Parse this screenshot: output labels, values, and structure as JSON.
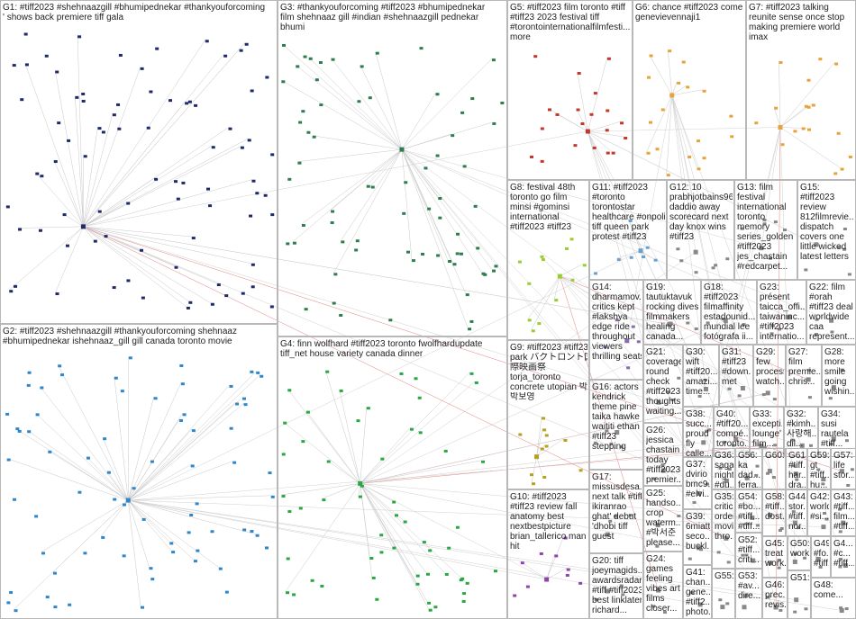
{
  "groups": [
    {
      "lines": [
        "G1: #tiff2023 #shehnaazgill #bhumipednekar #thankyouforcoming",
        "' shows back premiere tiff gala"
      ]
    },
    {
      "lines": [
        "G3: #thankyouforcoming #tiff2023 #bhumipednekar",
        "film shehnaaz gill #indian #shehnaazgill pednekar",
        "bhumi"
      ]
    },
    {
      "lines": [
        "G5: #tiff2023 film toronto #tiff",
        "#tiff23 2023 festival tiff",
        "#torontointernationalfilmfesti...",
        "more"
      ]
    },
    {
      "lines": [
        "G6: chance #tiff2023 come",
        "genevievennaji1"
      ]
    },
    {
      "lines": [
        "G7: #tiff2023 talking",
        "reunite sense once stop",
        "making premiere world",
        "imax"
      ]
    },
    {
      "lines": [
        "G2: #tiff2023 #shehnaazgill #thankyouforcoming shehnaaz",
        "#bhumipednekar ishehnaaz_gill gill canada toronto movie"
      ]
    },
    {
      "lines": [
        "G4: finn wolfhard #tiff2023 toronto fwolfhardupdate",
        "tiff_net house variety canada dinner"
      ]
    },
    {
      "lines": [
        "G8: festival 48th",
        "toronto go film",
        "minsi #gominsi",
        "international",
        "#tiff2023 #tiff23"
      ]
    },
    {
      "lines": [
        "G11: #tiff2023",
        "#toronto",
        "torontostar",
        "healthcare #onpoli",
        "tiff queen park",
        "protest #tiff23"
      ]
    },
    {
      "lines": [
        "G12: 10",
        "prabhjotbains96",
        "daddio away",
        "scorecard next",
        "day knox wins",
        "#tiff23"
      ]
    },
    {
      "lines": [
        "G13: film",
        "festival",
        "international",
        "toronto",
        "memory",
        "series_golden",
        "#tiff2023",
        "jes_chastain",
        "#redcarpet..."
      ]
    },
    {
      "lines": [
        "G15:",
        "#tiff2023",
        "review",
        "812filmrevie...",
        "dispatch",
        "covers one",
        "little wicked",
        "latest letters"
      ]
    },
    {
      "lines": [
        "G14:",
        "dharmamov...",
        "critics kept",
        "#lakshya",
        "edge ride",
        "throughout",
        "viewers",
        "thrilling seats"
      ]
    },
    {
      "lines": [
        "G19:",
        "tautuktavuk",
        "rocking dives",
        "filmmakers",
        "healing",
        "canada..."
      ]
    },
    {
      "lines": [
        "G18:",
        "#tiff2023",
        "filmaffinity",
        "estadounid...",
        "mundial lee",
        "fotógrafa ii..."
      ]
    },
    {
      "lines": [
        "G23:",
        "présent",
        "taicca_offi...",
        "taiwaninc...",
        "#tiff2023",
        "internatio..."
      ]
    },
    {
      "lines": [
        "G22: film",
        "#orah",
        "#tiff23 deal",
        "worldwide",
        "caa",
        "represent..."
      ]
    },
    {
      "lines": [
        "G9: #tiff2023 #tiff23",
        "park バクトロント国",
        "際映画祭",
        "torja_toronto",
        "concrete utopian 박",
        "박보영"
      ]
    },
    {
      "lines": [
        "G21:",
        "coverage",
        "round",
        "check",
        "#tiff2023",
        "thoughts",
        "waiting..."
      ]
    },
    {
      "lines": [
        "G30:",
        "wift",
        "#tiff20...",
        "amazi...",
        "time..."
      ]
    },
    {
      "lines": [
        "G31:",
        "#tiff23",
        "#down...",
        "met"
      ]
    },
    {
      "lines": [
        "G29:",
        "few",
        "process",
        "watch..."
      ]
    },
    {
      "lines": [
        "G27:",
        "film",
        "premie...",
        "chris..."
      ]
    },
    {
      "lines": [
        "G28:",
        "more",
        "smile",
        "going",
        "wishin..."
      ]
    },
    {
      "lines": [
        "G16: actors",
        "kendrick",
        "theme pine",
        "taika hawke",
        "waititi ethan",
        "#tiff23",
        "stepping"
      ]
    },
    {
      "lines": [
        "G26:",
        "jessica",
        "chastain",
        "today",
        "#tiff2023",
        "premier..."
      ]
    },
    {
      "lines": [
        "G38:",
        "succ...",
        "proud",
        "fly",
        "calle..."
      ]
    },
    {
      "lines": [
        "G40:",
        "#tiff20...",
        "compé...",
        "toronto..."
      ]
    },
    {
      "lines": [
        "G33:",
        "excepti...",
        "lounge'",
        "film..."
      ]
    },
    {
      "lines": [
        "G32:",
        "#kimh...",
        "사랑해...",
        "dil..."
      ]
    },
    {
      "lines": [
        "G34:",
        "susi",
        "rautela",
        "#tiff..."
      ]
    },
    {
      "lines": [
        "G37:",
        "dvirio",
        "bmc9...",
        "#elvi..."
      ]
    },
    {
      "lines": [
        "G36:",
        "saga",
        "night",
        "#du..."
      ]
    },
    {
      "lines": [
        "G56:",
        "ka",
        "dad...",
        "ferra..."
      ]
    },
    {
      "lines": [
        "G60:"
      ]
    },
    {
      "lines": [
        "G61:",
        "#tiff...",
        "har...",
        "dra..."
      ]
    },
    {
      "lines": [
        "G59:",
        "gt",
        "#tiff...",
        "hu..."
      ]
    },
    {
      "lines": [
        "G57:",
        "life",
        "stor..."
      ]
    },
    {
      "lines": [
        "G10: #tiff2023",
        "#tiff23 review fall",
        "anatomy best",
        "nextbestpicture",
        "brian_tallerico man",
        "hit"
      ]
    },
    {
      "lines": [
        "G17:",
        "missusdesa...",
        "next talk #tiff",
        "ikiranrao",
        "ghat' debut",
        "'dhobi tiff",
        "guest"
      ]
    },
    {
      "lines": [
        "G25:",
        "handso...",
        "crop",
        "waterm...",
        "#박서준",
        "please..."
      ]
    },
    {
      "lines": [
        "G39:",
        "6miatt...",
        "seco...",
        "buckl..."
      ]
    },
    {
      "lines": [
        "G35:",
        "critics",
        "order",
        "movie",
        "thro..."
      ]
    },
    {
      "lines": [
        "G54:",
        "#bo...",
        "#tiff...",
        "#tiff..."
      ]
    },
    {
      "lines": [
        "G52:",
        "#tiff...",
        "criti..."
      ]
    },
    {
      "lines": [
        "G58:",
        "#tiff...",
        "dost..."
      ]
    },
    {
      "lines": [
        "G44:",
        "stor...",
        "#tiff...",
        "nor..."
      ]
    },
    {
      "lines": [
        "G42:",
        "world",
        "#si..."
      ]
    },
    {
      "lines": [
        "G43:",
        "#tiff...",
        "film...",
        "#tiff..."
      ]
    },
    {
      "lines": [
        "G45:",
        "treat",
        "work..."
      ]
    },
    {
      "lines": [
        "G50:",
        "work"
      ]
    },
    {
      "lines": [
        "G49",
        "#fo...",
        "#tiff..."
      ]
    },
    {
      "lines": [
        "G4...",
        "#c...",
        "#tiff..."
      ]
    },
    {
      "lines": [
        "G20: tiff",
        "joeymagids...",
        "awardsradar",
        "#tiff #tiff2023",
        "best linklater",
        "richard..."
      ]
    },
    {
      "lines": [
        "G24:",
        "games",
        "feeling",
        "vibes art",
        "films",
        "closer..."
      ]
    },
    {
      "lines": [
        "G41:",
        "chan...",
        "gene...",
        "#tiff2...",
        "photo..."
      ]
    },
    {
      "lines": [
        "G55:"
      ]
    },
    {
      "lines": [
        "G53:",
        "#av...",
        "dire..."
      ]
    },
    {
      "lines": [
        "G46:",
        "prec...",
        "revis..."
      ]
    },
    {
      "lines": [
        "G51:"
      ]
    },
    {
      "lines": [
        "G48:",
        "come..."
      ]
    }
  ]
}
